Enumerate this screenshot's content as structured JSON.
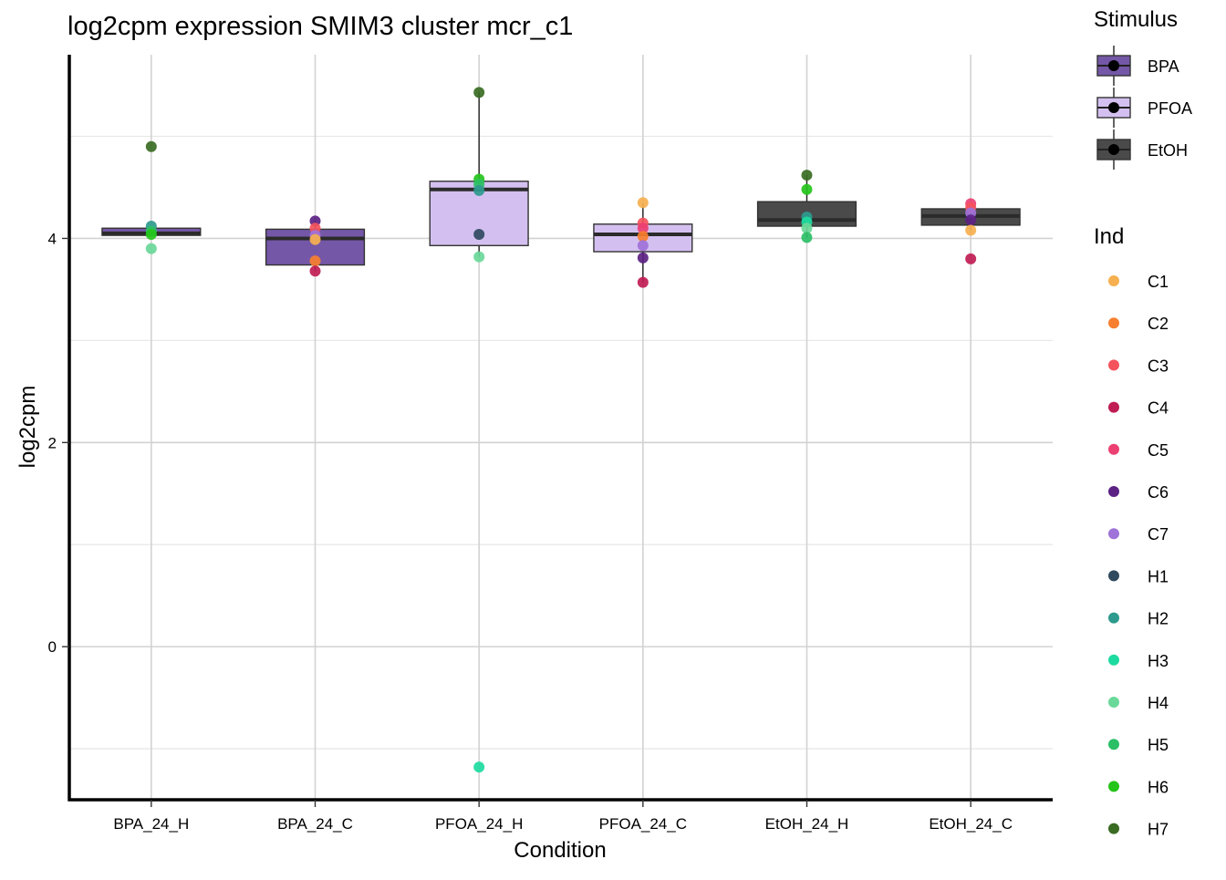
{
  "chart_data": {
    "type": "box",
    "title": "log2cpm expression SMIM3 cluster mcr_c1",
    "xlabel": "Condition",
    "ylabel": "log2cpm",
    "ylim": [
      -1.5,
      5.8
    ],
    "yticks": [
      0,
      2,
      4
    ],
    "grid": true,
    "categories": [
      "BPA_24_H",
      "BPA_24_C",
      "PFOA_24_H",
      "PFOA_24_C",
      "EtOH_24_H",
      "EtOH_24_C"
    ],
    "boxes": [
      {
        "category": "BPA_24_H",
        "stimulus": "BPA",
        "q1": 4.03,
        "median": 4.05,
        "q3": 4.1,
        "whisker_low": 4.03,
        "whisker_high": 4.1
      },
      {
        "category": "BPA_24_C",
        "stimulus": "BPA",
        "q1": 3.74,
        "median": 4.0,
        "q3": 4.09,
        "whisker_low": 3.68,
        "whisker_high": 4.17
      },
      {
        "category": "PFOA_24_H",
        "stimulus": "PFOA",
        "q1": 3.93,
        "median": 4.48,
        "q3": 4.56,
        "whisker_low": 3.82,
        "whisker_high": 5.43
      },
      {
        "category": "PFOA_24_C",
        "stimulus": "PFOA",
        "q1": 3.87,
        "median": 4.04,
        "q3": 4.14,
        "whisker_low": 3.57,
        "whisker_high": 4.35
      },
      {
        "category": "EtOH_24_H",
        "stimulus": "EtOH",
        "q1": 4.12,
        "median": 4.18,
        "q3": 4.36,
        "whisker_low": 4.01,
        "whisker_high": 4.62
      },
      {
        "category": "EtOH_24_C",
        "stimulus": "EtOH",
        "q1": 4.13,
        "median": 4.22,
        "q3": 4.29,
        "whisker_low": 4.08,
        "whisker_high": 4.34
      }
    ],
    "points": [
      {
        "category": "BPA_24_H",
        "ind": "H7",
        "value": 4.9
      },
      {
        "category": "BPA_24_H",
        "ind": "H2",
        "value": 4.12
      },
      {
        "category": "BPA_24_H",
        "ind": "H5",
        "value": 4.07
      },
      {
        "category": "BPA_24_H",
        "ind": "H6",
        "value": 4.04
      },
      {
        "category": "BPA_24_H",
        "ind": "H4",
        "value": 3.9
      },
      {
        "category": "BPA_24_C",
        "ind": "C6",
        "value": 4.17
      },
      {
        "category": "BPA_24_C",
        "ind": "C3",
        "value": 4.1
      },
      {
        "category": "BPA_24_C",
        "ind": "C7",
        "value": 4.03
      },
      {
        "category": "BPA_24_C",
        "ind": "C1",
        "value": 3.99
      },
      {
        "category": "BPA_24_C",
        "ind": "C2",
        "value": 3.78
      },
      {
        "category": "BPA_24_C",
        "ind": "C4",
        "value": 3.68
      },
      {
        "category": "PFOA_24_H",
        "ind": "H7",
        "value": 5.43
      },
      {
        "category": "PFOA_24_H",
        "ind": "H6",
        "value": 4.58
      },
      {
        "category": "PFOA_24_H",
        "ind": "H5",
        "value": 4.53
      },
      {
        "category": "PFOA_24_H",
        "ind": "H2",
        "value": 4.47
      },
      {
        "category": "PFOA_24_H",
        "ind": "H1",
        "value": 4.04
      },
      {
        "category": "PFOA_24_H",
        "ind": "H4",
        "value": 3.82
      },
      {
        "category": "PFOA_24_H",
        "ind": "H3",
        "value": -1.18
      },
      {
        "category": "PFOA_24_C",
        "ind": "C1",
        "value": 4.35
      },
      {
        "category": "PFOA_24_C",
        "ind": "C3",
        "value": 4.15
      },
      {
        "category": "PFOA_24_C",
        "ind": "C5",
        "value": 4.1
      },
      {
        "category": "PFOA_24_C",
        "ind": "C2",
        "value": 4.02
      },
      {
        "category": "PFOA_24_C",
        "ind": "C7",
        "value": 3.93
      },
      {
        "category": "PFOA_24_C",
        "ind": "C6",
        "value": 3.81
      },
      {
        "category": "PFOA_24_C",
        "ind": "C4",
        "value": 3.57
      },
      {
        "category": "EtOH_24_H",
        "ind": "H7",
        "value": 4.62
      },
      {
        "category": "EtOH_24_H",
        "ind": "H6",
        "value": 4.48
      },
      {
        "category": "EtOH_24_H",
        "ind": "H2",
        "value": 4.21
      },
      {
        "category": "EtOH_24_H",
        "ind": "H3",
        "value": 4.16
      },
      {
        "category": "EtOH_24_H",
        "ind": "H4",
        "value": 4.1
      },
      {
        "category": "EtOH_24_H",
        "ind": "H5",
        "value": 4.01
      },
      {
        "category": "EtOH_24_C",
        "ind": "C5",
        "value": 4.34
      },
      {
        "category": "EtOH_24_C",
        "ind": "C3",
        "value": 4.3
      },
      {
        "category": "EtOH_24_C",
        "ind": "C7",
        "value": 4.25
      },
      {
        "category": "EtOH_24_C",
        "ind": "C6",
        "value": 4.18
      },
      {
        "category": "EtOH_24_C",
        "ind": "C1",
        "value": 4.08
      },
      {
        "category": "EtOH_24_C",
        "ind": "C4",
        "value": 3.8
      }
    ],
    "legend_stimulus": {
      "title": "Stimulus",
      "position": "right",
      "entries": [
        {
          "label": "BPA",
          "color": "#7557a7"
        },
        {
          "label": "PFOA",
          "color": "#d4c0f0"
        },
        {
          "label": "EtOH",
          "color": "#4a4a4a"
        }
      ]
    },
    "legend_ind": {
      "title": "Ind",
      "position": "right",
      "entries": [
        {
          "label": "C1",
          "color": "#f6b04f"
        },
        {
          "label": "C2",
          "color": "#f77f2f"
        },
        {
          "label": "C3",
          "color": "#f4525c"
        },
        {
          "label": "C4",
          "color": "#c01c54"
        },
        {
          "label": "C5",
          "color": "#ec3f72"
        },
        {
          "label": "C6",
          "color": "#5b2183"
        },
        {
          "label": "C7",
          "color": "#9f72d9"
        },
        {
          "label": "H1",
          "color": "#2f4a5f"
        },
        {
          "label": "H2",
          "color": "#2e9a8e"
        },
        {
          "label": "H3",
          "color": "#1ddba0"
        },
        {
          "label": "H4",
          "color": "#6ad898"
        },
        {
          "label": "H5",
          "color": "#2cbf66"
        },
        {
          "label": "H6",
          "color": "#25c41b"
        },
        {
          "label": "H7",
          "color": "#3a6b23"
        }
      ]
    }
  }
}
